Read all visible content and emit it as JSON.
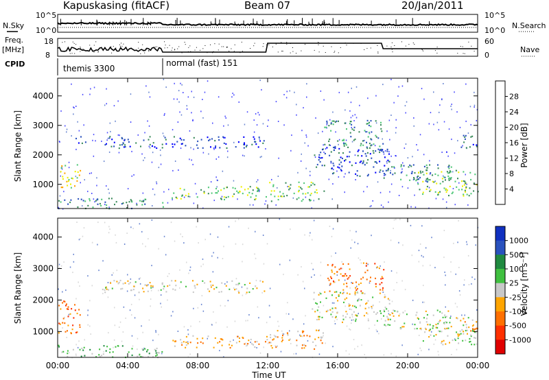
{
  "header": {
    "station": "Kapuskasing (fitACF)",
    "beam": "Beam 07",
    "date": "20/Jan/2011"
  },
  "summary": {
    "nsky_label": "N.Sky",
    "nsearch_label": "N.Search",
    "noise_ticks": [
      "10^5",
      "10^0"
    ],
    "freq_label_1": "Freq.",
    "freq_label_2": "[MHz]",
    "freq_ticks": [
      "18",
      "8"
    ],
    "nave_label": "Nave",
    "nave_ticks": [
      "60",
      "0"
    ],
    "cpid_label": "CPID",
    "cpid_segments": [
      {
        "name": "themis 3300",
        "start_hour": 0,
        "end_hour": 6
      },
      {
        "name": "normal (fast) 151",
        "start_hour": 6,
        "end_hour": 24
      }
    ]
  },
  "colorbars": {
    "power": {
      "label": "Power [dB]",
      "ticks": [
        "4",
        "8",
        "12",
        "16",
        "20",
        "24",
        "28"
      ],
      "colors": [
        "#0000ff",
        "#2a52be",
        "#3a8a5a",
        "#50c878",
        "#f0f000",
        "#ffa500",
        "#ff5a00",
        "#e00000"
      ]
    },
    "velocity": {
      "label": "Velocity [m s⁻¹]",
      "ticks": [
        "1000",
        "500",
        "100",
        "25",
        "-25",
        "-100",
        "-500",
        "-1000"
      ],
      "colors": [
        "#1030c0",
        "#2a52be",
        "#208a40",
        "#40c040",
        "#c8c8c8",
        "#ffa500",
        "#ff7000",
        "#ff3000",
        "#e00000"
      ]
    }
  },
  "chart_data": {
    "type": "heatmap",
    "xlabel": "Time UT",
    "x_ticks": [
      "00:00",
      "04:00",
      "08:00",
      "12:00",
      "16:00",
      "20:00",
      "00:00"
    ],
    "xlim_hours": [
      0,
      24
    ],
    "ylabel": "Slant Range [km]",
    "y_ticks": [
      1000,
      2000,
      3000,
      4000
    ],
    "ylim_km": [
      180,
      4600
    ],
    "panels": [
      {
        "name": "Power",
        "echo_regions": [
          {
            "t0": 0.0,
            "t1": 1.3,
            "r0": 900,
            "r1": 1700,
            "level": 4
          },
          {
            "t0": 0.0,
            "t1": 6.0,
            "r0": 200,
            "r1": 550,
            "level": 2
          },
          {
            "t0": 0.9,
            "t1": 1.6,
            "r0": 2350,
            "r1": 2650,
            "level": 1
          },
          {
            "t0": 2.5,
            "t1": 11.8,
            "r0": 2250,
            "r1": 2650,
            "level": 1
          },
          {
            "t0": 6.5,
            "t1": 12.0,
            "r0": 500,
            "r1": 950,
            "level": 3
          },
          {
            "t0": 12.0,
            "t1": 15.2,
            "r0": 450,
            "r1": 1100,
            "level": 3
          },
          {
            "t0": 15.2,
            "t1": 18.6,
            "r0": 2300,
            "r1": 3200,
            "level": 2
          },
          {
            "t0": 14.5,
            "t1": 19.0,
            "r0": 1300,
            "r1": 2300,
            "level": 1
          },
          {
            "t0": 18.6,
            "t1": 22.5,
            "r0": 1100,
            "r1": 1700,
            "level": 2
          },
          {
            "t0": 20.5,
            "t1": 24.0,
            "r0": 600,
            "r1": 1500,
            "level": 3
          },
          {
            "t0": 23.0,
            "t1": 24.0,
            "r0": 2200,
            "r1": 2700,
            "level": 1
          }
        ]
      },
      {
        "name": "Velocity",
        "echo_regions": [
          {
            "t0": 0.0,
            "t1": 1.3,
            "r0": 900,
            "r1": 2000,
            "level": 6
          },
          {
            "t0": 0.0,
            "t1": 6.0,
            "r0": 200,
            "r1": 600,
            "level": 3
          },
          {
            "t0": 2.5,
            "t1": 11.8,
            "r0": 2250,
            "r1": 2650,
            "level": 4
          },
          {
            "t0": 6.5,
            "t1": 12.0,
            "r0": 500,
            "r1": 900,
            "level": 5
          },
          {
            "t0": 12.0,
            "t1": 15.2,
            "r0": 450,
            "r1": 1100,
            "level": 5
          },
          {
            "t0": 15.4,
            "t1": 18.6,
            "r0": 2300,
            "r1": 3200,
            "level": 6
          },
          {
            "t0": 14.5,
            "t1": 19.0,
            "r0": 1300,
            "r1": 2300,
            "level": 4
          },
          {
            "t0": 18.6,
            "t1": 22.5,
            "r0": 1100,
            "r1": 1700,
            "level": 4
          },
          {
            "t0": 20.5,
            "t1": 24.0,
            "r0": 600,
            "r1": 1500,
            "level": 4
          },
          {
            "t0": 23.0,
            "t1": 24.0,
            "r0": 900,
            "r1": 1500,
            "level": 5
          }
        ]
      }
    ]
  }
}
